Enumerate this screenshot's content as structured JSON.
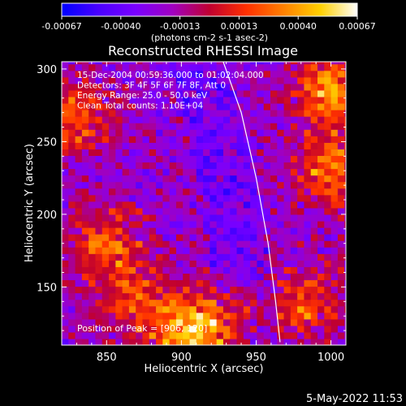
{
  "chart_data": {
    "type": "heatmap",
    "title": "Reconstructed RHESSI Image",
    "xlabel": "Heliocentric X (arcsec)",
    "ylabel": "Heliocentric Y (arcsec)",
    "xlim": [
      820,
      1010
    ],
    "ylim": [
      110,
      305
    ],
    "x_ticks": [
      850,
      900,
      950,
      1000
    ],
    "y_ticks": [
      150,
      200,
      250,
      300
    ],
    "colorbar": {
      "ticks": [
        "-0.00067",
        "-0.00040",
        "-0.00013",
        "0.00013",
        "0.00040",
        "0.00067"
      ],
      "range": [
        -0.00067,
        0.00067
      ],
      "unit_label": "(photons cm-2 s-1 asec-2)",
      "colors": [
        "#0000ff",
        "#4a00ff",
        "#7a00ff",
        "#a000c0",
        "#c00030",
        "#ff3000",
        "#ff8000",
        "#ffd000",
        "#ffffff"
      ]
    },
    "annotations": [
      "15-Dec-2004 00:59:36.000 to 01:02:04.000",
      "Detectors: 3F 4F 5F 6F 7F 8F, Att 0",
      "Energy Range: 25.0 - 50.0 keV",
      "Clean    Total counts: 1.10E+04"
    ],
    "peak_label": "Position of Peak = [906, 120]",
    "bright_regions": [
      {
        "x": 906,
        "y": 120,
        "value": 0.00067
      },
      {
        "x": 1000,
        "y": 285,
        "value": 0.0006
      },
      {
        "x": 1000,
        "y": 230,
        "value": 0.0005
      },
      {
        "x": 830,
        "y": 265,
        "value": 0.00045
      },
      {
        "x": 850,
        "y": 180,
        "value": 0.00045
      },
      {
        "x": 985,
        "y": 140,
        "value": 0.0004
      },
      {
        "x": 870,
        "y": 140,
        "value": 0.00035
      },
      {
        "x": 935,
        "y": 130,
        "value": 0.0003
      }
    ],
    "limb_curve": [
      [
        928,
        305
      ],
      [
        940,
        270
      ],
      [
        950,
        225
      ],
      [
        958,
        180
      ],
      [
        963,
        140
      ],
      [
        966,
        112
      ]
    ]
  },
  "footer": {
    "timestamp": "5-May-2022 11:53"
  }
}
